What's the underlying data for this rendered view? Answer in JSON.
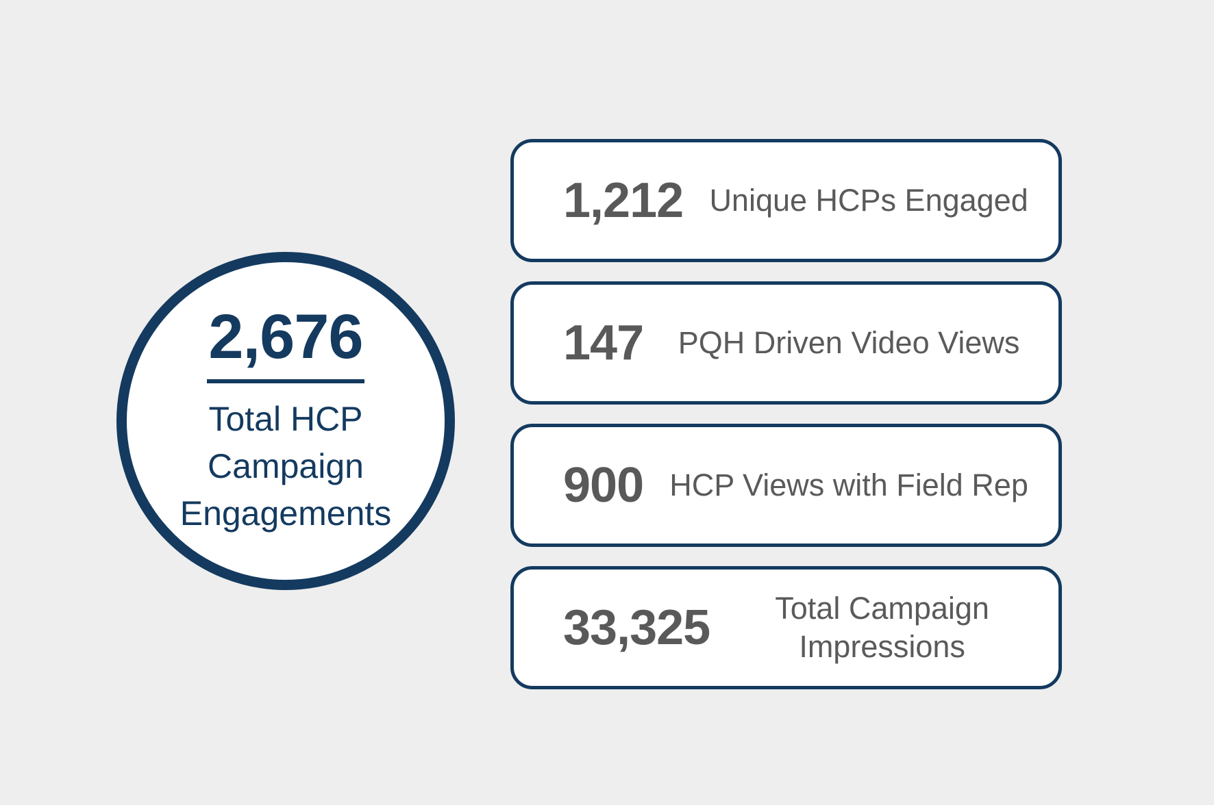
{
  "background_color": "#eeeeee",
  "accent_navy": "#143a5f",
  "number_gray": "#595959",
  "circle_stat": {
    "value": "2,676",
    "label": "Total HCP Campaign Engagements"
  },
  "cards": [
    {
      "value": "1,212",
      "label": "Unique HCPs Engaged"
    },
    {
      "value": "147",
      "label": "PQH Driven Video Views"
    },
    {
      "value": "900",
      "label": "HCP Views with Field Rep"
    },
    {
      "value": "33,325",
      "label": "Total Campaign Impressions"
    }
  ],
  "chart_data": {
    "type": "table",
    "title": "HCP Campaign Engagement Summary",
    "metrics": [
      {
        "label": "Total HCP Campaign Engagements",
        "value": 2676
      },
      {
        "label": "Unique HCPs Engaged",
        "value": 1212
      },
      {
        "label": "PQH Driven Video Views",
        "value": 147
      },
      {
        "label": "HCP Views with Field Rep",
        "value": 900
      },
      {
        "label": "Total Campaign Impressions",
        "value": 33325
      }
    ],
    "legend": false,
    "grid": false
  }
}
